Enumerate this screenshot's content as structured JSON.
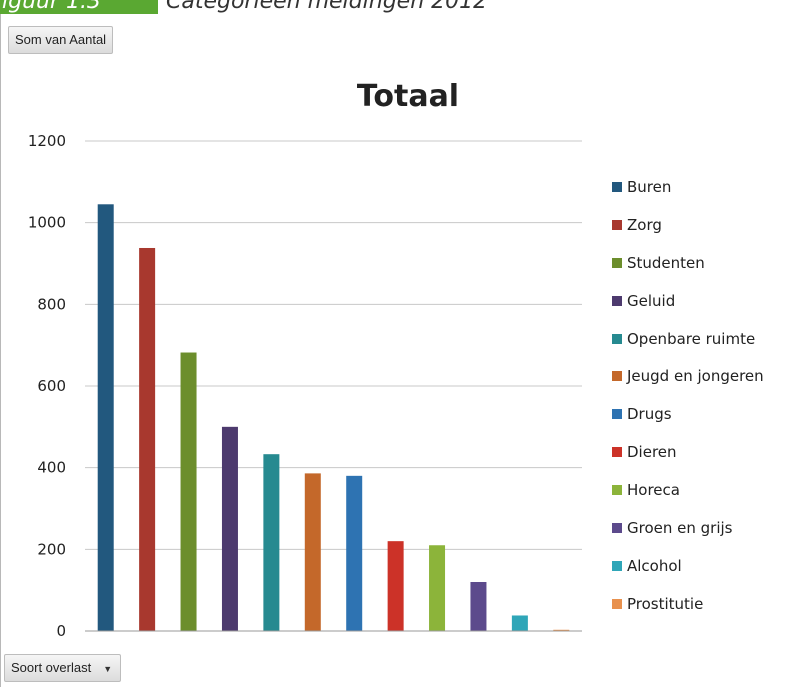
{
  "caption": {
    "prefix": "iguur 1.3",
    "text": "Categorieën meldingen 2012"
  },
  "pivot": {
    "value_field": "Som van Aantal",
    "axis_field": "Soort overlast"
  },
  "chart_data": {
    "type": "bar",
    "title": "Totaal",
    "xlabel": "",
    "ylabel": "",
    "ylim": [
      0,
      1200
    ],
    "yticks": [
      0,
      200,
      400,
      600,
      800,
      1000,
      1200
    ],
    "grid": true,
    "legend_position": "right",
    "series": [
      {
        "name": "Buren",
        "value": 1045,
        "color": "#22587e"
      },
      {
        "name": "Zorg",
        "value": 938,
        "color": "#a8382e"
      },
      {
        "name": "Studenten",
        "value": 682,
        "color": "#6c8e2c"
      },
      {
        "name": "Geluid",
        "value": 500,
        "color": "#4d3a6e"
      },
      {
        "name": "Openbare ruimte",
        "value": 433,
        "color": "#268a90"
      },
      {
        "name": "Jeugd en jongeren",
        "value": 386,
        "color": "#c4682a"
      },
      {
        "name": "Drugs",
        "value": 380,
        "color": "#2e73b2"
      },
      {
        "name": "Dieren",
        "value": 220,
        "color": "#cc3228"
      },
      {
        "name": "Horeca",
        "value": 210,
        "color": "#8cb43a"
      },
      {
        "name": "Groen en grijs",
        "value": 120,
        "color": "#5c4a8c"
      },
      {
        "name": "Alcohol",
        "value": 38,
        "color": "#2fa6b8"
      },
      {
        "name": "Prostitutie",
        "value": 3,
        "color": "#e8914e"
      }
    ]
  }
}
